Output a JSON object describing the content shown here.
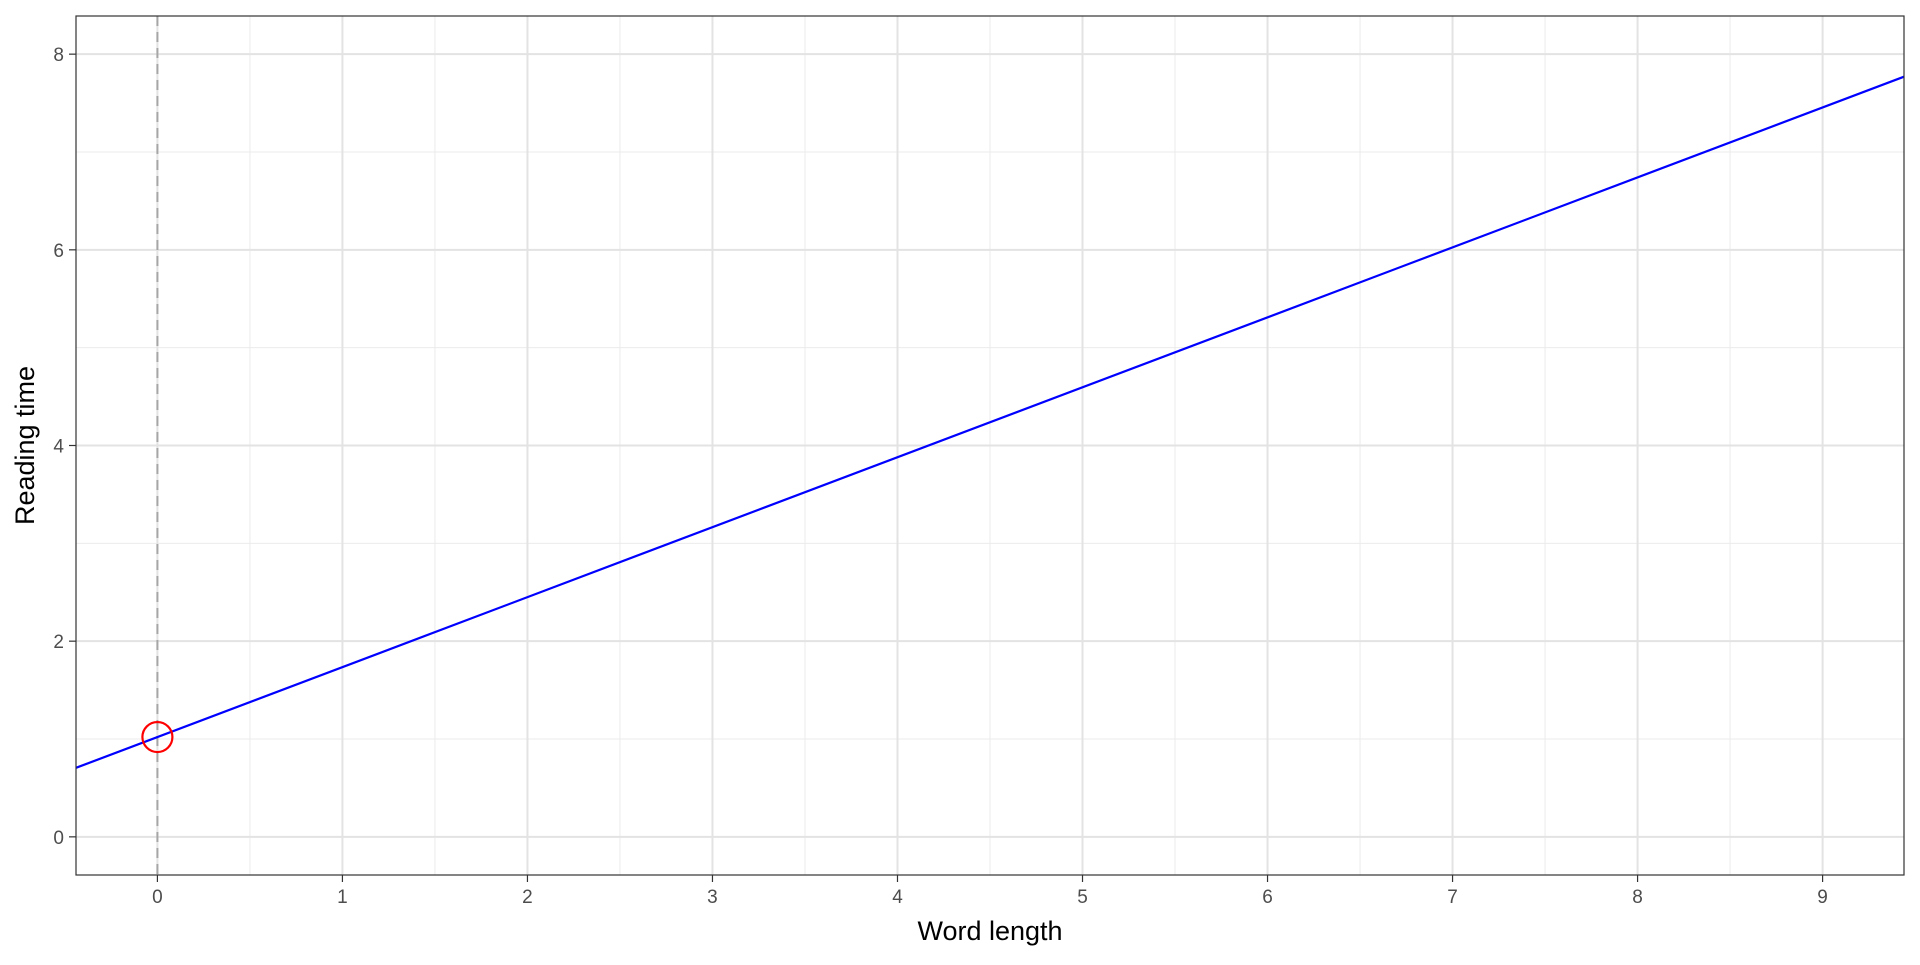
{
  "chart_data": {
    "type": "line",
    "title": "",
    "xlabel": "Word length",
    "ylabel": "Reading time",
    "xlim": [
      -0.44,
      9.44
    ],
    "ylim": [
      -0.39,
      8.39
    ],
    "x_ticks": [
      0,
      1,
      2,
      3,
      4,
      5,
      6,
      7,
      8,
      9
    ],
    "y_ticks": [
      0,
      2,
      4,
      6,
      8
    ],
    "grid": true,
    "series": [
      {
        "type": "abline",
        "intercept": 1.02,
        "slope": 0.715,
        "color": "#0000ff"
      }
    ],
    "reference_lines": [
      {
        "type": "vline",
        "x": 0,
        "style": "dashed",
        "color": "#a6a6a6"
      }
    ],
    "annotations": [
      {
        "type": "circle-marker",
        "x": 0,
        "y": 1.02,
        "color": "#ff0000"
      }
    ]
  }
}
